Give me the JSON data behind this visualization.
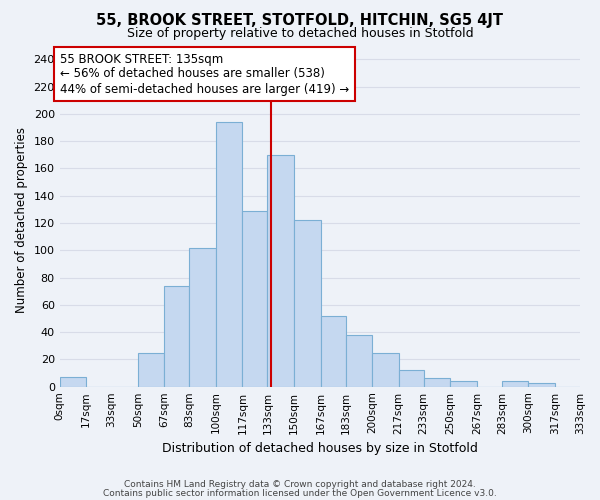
{
  "title": "55, BROOK STREET, STOTFOLD, HITCHIN, SG5 4JT",
  "subtitle": "Size of property relative to detached houses in Stotfold",
  "xlabel": "Distribution of detached houses by size in Stotfold",
  "ylabel": "Number of detached properties",
  "bar_color": "#c5d8f0",
  "bar_edge_color": "#7bafd4",
  "background_color": "#eef2f8",
  "grid_color": "#d8dce8",
  "bins": [
    0,
    17,
    33,
    50,
    67,
    83,
    100,
    117,
    133,
    150,
    167,
    183,
    200,
    217,
    233,
    250,
    267,
    283,
    300,
    317,
    333
  ],
  "bin_labels": [
    "0sqm",
    "17sqm",
    "33sqm",
    "50sqm",
    "67sqm",
    "83sqm",
    "100sqm",
    "117sqm",
    "133sqm",
    "150sqm",
    "167sqm",
    "183sqm",
    "200sqm",
    "217sqm",
    "233sqm",
    "250sqm",
    "267sqm",
    "283sqm",
    "300sqm",
    "317sqm",
    "333sqm"
  ],
  "values": [
    7,
    0,
    0,
    25,
    74,
    102,
    194,
    129,
    170,
    122,
    52,
    38,
    25,
    12,
    6,
    4,
    0,
    4,
    3,
    0
  ],
  "property_label": "55 BROOK STREET: 135sqm",
  "annotation_line1": "← 56% of detached houses are smaller (538)",
  "annotation_line2": "44% of semi-detached houses are larger (419) →",
  "vline_color": "#cc0000",
  "vline_x": 135,
  "ylim": [
    0,
    245
  ],
  "yticks": [
    0,
    20,
    40,
    60,
    80,
    100,
    120,
    140,
    160,
    180,
    200,
    220,
    240
  ],
  "footnote1": "Contains HM Land Registry data © Crown copyright and database right 2024.",
  "footnote2": "Contains public sector information licensed under the Open Government Licence v3.0."
}
